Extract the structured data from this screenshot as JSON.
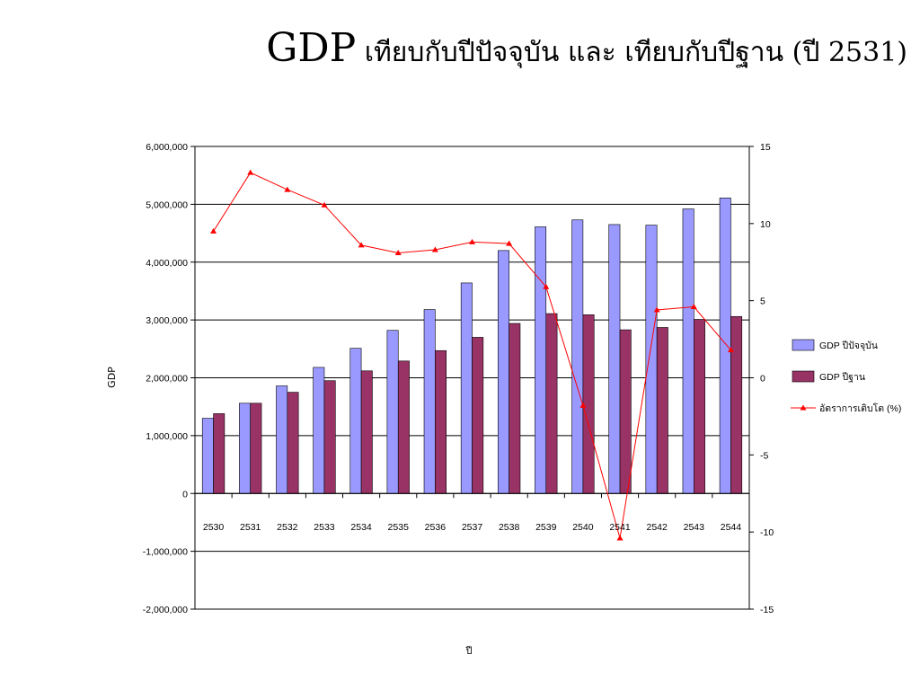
{
  "title": {
    "main": "GDP",
    "rest": "เทียบกับปีปัจจุบัน และ เทียบกับปีฐาน (ปี 2531)"
  },
  "chart_data": {
    "type": "bar",
    "categories": [
      "2530",
      "2531",
      "2532",
      "2533",
      "2534",
      "2535",
      "2536",
      "2537",
      "2538",
      "2539",
      "2540",
      "2541",
      "2542",
      "2543",
      "2544"
    ],
    "series": [
      {
        "name": "GDP ปีปัจจุบัน",
        "type": "bar",
        "axis": "left",
        "color": "#9999ff",
        "values": [
          1300000,
          1560000,
          1860000,
          2180000,
          2510000,
          2820000,
          3180000,
          3640000,
          4200000,
          4610000,
          4730000,
          4650000,
          4640000,
          4920000,
          5110000
        ]
      },
      {
        "name": "GDP ปีฐาน",
        "type": "bar",
        "axis": "left",
        "color": "#993366",
        "values": [
          1380000,
          1560000,
          1750000,
          1950000,
          2120000,
          2290000,
          2470000,
          2700000,
          2940000,
          3110000,
          3090000,
          2830000,
          2870000,
          3010000,
          3060000
        ]
      },
      {
        "name": "อัตราการเติบโต (%)",
        "type": "line",
        "axis": "right",
        "color": "#ff0000",
        "marker": "triangle",
        "values": [
          9.5,
          13.3,
          12.2,
          11.2,
          8.6,
          8.1,
          8.3,
          8.8,
          8.7,
          5.9,
          -1.8,
          -10.4,
          4.4,
          4.6,
          1.8
        ]
      }
    ],
    "xlabel": "ปี",
    "ylabel": "GDP",
    "y_left": {
      "min": -2000000,
      "max": 6000000,
      "step": 1000000,
      "tick_labels": [
        "-2,000,000",
        "-1,000,000",
        "0",
        "1,000,000",
        "2,000,000",
        "3,000,000",
        "4,000,000",
        "5,000,000",
        "6,000,000"
      ]
    },
    "y_right": {
      "min": -15,
      "max": 15,
      "step": 5,
      "tick_labels": [
        "-15",
        "-10",
        "-5",
        "0",
        "5",
        "10",
        "15"
      ]
    },
    "grid": true,
    "legend": "right"
  }
}
